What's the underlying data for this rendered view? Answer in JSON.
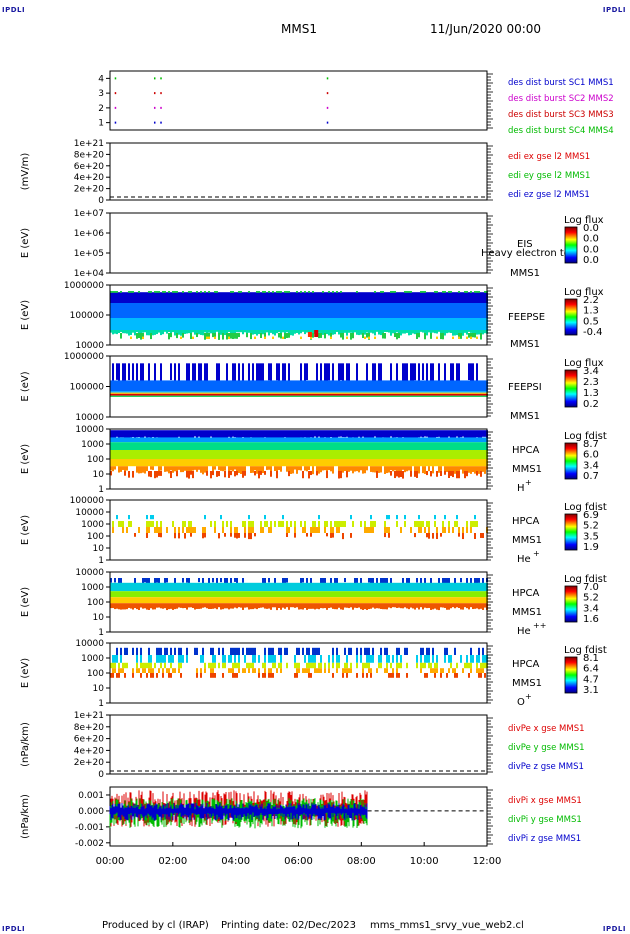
{
  "corners": {
    "tl": "IPDLI",
    "tr": "IPDLI",
    "bl": "IPDLI",
    "br": "IPDLI"
  },
  "header": {
    "spacecraft": "MMS1",
    "date": "11/Jun/2020 00:00"
  },
  "footer": {
    "producer": "Produced by cl (IRAP)",
    "printing_date": "Printing date: 02/Dec/2023",
    "script": "mms_mms1_srvy_vue_web2.cl"
  },
  "colors": {
    "mms1": "#0000cc",
    "mms2": "#cc00cc",
    "mms3": "#cc0000",
    "mms4": "#00bb00",
    "x": "#dd0000",
    "y": "#00bb00",
    "z": "#0000cc"
  },
  "chart_data": [
    {
      "type": "scatter",
      "id": "burst",
      "yticks": [
        "1",
        "2",
        "3",
        "4"
      ],
      "ylim": [
        0.5,
        4.5
      ],
      "xlim": [
        0,
        12
      ],
      "series": [
        {
          "name": "des dist burst SC1 MMS1",
          "color": "#0000cc",
          "y": 1,
          "x": [
            0.15,
            1.4,
            1.6,
            6.9
          ]
        },
        {
          "name": "des dist burst SC2 MMS2",
          "color": "#cc00cc",
          "y": 2,
          "x": [
            0.15,
            1.4,
            1.6,
            6.9
          ]
        },
        {
          "name": "des dist burst SC3 MMS3",
          "color": "#cc0000",
          "y": 3,
          "x": [
            0.15,
            1.4,
            1.6,
            6.9
          ]
        },
        {
          "name": "des dist burst SC4 MMS4",
          "color": "#00bb00",
          "y": 4,
          "x": [
            0.15,
            1.4,
            1.6,
            6.9
          ]
        }
      ]
    },
    {
      "type": "line",
      "id": "edi",
      "ylabel": "(mV/m)",
      "yticks": [
        "1e+21",
        "8e+20",
        "6e+20",
        "4e+20",
        "2e+20",
        "0"
      ],
      "series": [
        {
          "name": "edi ex gse l2 MMS1",
          "color": "#dd0000"
        },
        {
          "name": "edi ey gse l2 MMS1",
          "color": "#00bb00"
        },
        {
          "name": "edi ez gse l2 MMS1",
          "color": "#0000cc"
        }
      ]
    },
    {
      "type": "heatmap",
      "id": "eis",
      "ylabel": "E (eV)",
      "yticks": [
        "1e+07",
        "1e+06",
        "1e+05",
        "1e+04"
      ],
      "instrument": "EIS",
      "overlay_text": "Heavy electron to",
      "spacecraft": "MMS1",
      "colorbar": {
        "title": "Log flux",
        "ticks": [
          "0.0",
          "0.0",
          "0.0",
          "0.0"
        ]
      }
    },
    {
      "type": "heatmap",
      "id": "feepse",
      "ylabel": "E (eV)",
      "yticks": [
        "1000000",
        "100000",
        "10000"
      ],
      "instrument": "FEEPSE",
      "spacecraft": "MMS1",
      "colorbar": {
        "title": "Log flux",
        "ticks": [
          "2.2",
          "1.3",
          "0.5",
          "-0.4"
        ]
      }
    },
    {
      "type": "heatmap",
      "id": "feepsi",
      "ylabel": "E (eV)",
      "yticks": [
        "1000000",
        "100000",
        "10000"
      ],
      "instrument": "FEEPSI",
      "spacecraft": "MMS1",
      "colorbar": {
        "title": "Log flux",
        "ticks": [
          "3.4",
          "2.3",
          "1.3",
          "0.2"
        ]
      }
    },
    {
      "type": "heatmap",
      "id": "hpca_h",
      "ylabel": "E (eV)",
      "yticks": [
        "10000",
        "1000",
        "100",
        "10",
        "1"
      ],
      "instrument": "HPCA",
      "spacecraft": "MMS1",
      "species": "H",
      "charge": "+",
      "colorbar": {
        "title": "Log fdist",
        "ticks": [
          "8.7",
          "6.0",
          "3.4",
          "0.7"
        ]
      }
    },
    {
      "type": "heatmap",
      "id": "hpca_he",
      "ylabel": "E (eV)",
      "yticks": [
        "100000",
        "10000",
        "1000",
        "100",
        "10",
        "1"
      ],
      "instrument": "HPCA",
      "spacecraft": "MMS1",
      "species": "He",
      "charge": "+",
      "colorbar": {
        "title": "Log fdist",
        "ticks": [
          "6.9",
          "5.2",
          "3.5",
          "1.9"
        ]
      }
    },
    {
      "type": "heatmap",
      "id": "hpca_he2",
      "ylabel": "E (eV)",
      "yticks": [
        "10000",
        "1000",
        "100",
        "10",
        "1"
      ],
      "instrument": "HPCA",
      "spacecraft": "MMS1",
      "species": "He",
      "charge": "++",
      "colorbar": {
        "title": "Log fdist",
        "ticks": [
          "7.0",
          "5.2",
          "3.4",
          "1.6"
        ]
      }
    },
    {
      "type": "heatmap",
      "id": "hpca_o",
      "ylabel": "E (eV)",
      "yticks": [
        "10000",
        "1000",
        "100",
        "10",
        "1"
      ],
      "instrument": "HPCA",
      "spacecraft": "MMS1",
      "species": "O",
      "charge": "+",
      "colorbar": {
        "title": "Log fdist",
        "ticks": [
          "8.1",
          "6.4",
          "4.7",
          "3.1"
        ]
      }
    },
    {
      "type": "line",
      "id": "divpe",
      "ylabel": "(nPa/km)",
      "yticks": [
        "1e+21",
        "8e+20",
        "6e+20",
        "4e+20",
        "2e+20",
        "0"
      ],
      "series": [
        {
          "name": "divPe x gse MMS1",
          "color": "#dd0000"
        },
        {
          "name": "divPe y gse MMS1",
          "color": "#00bb00"
        },
        {
          "name": "divPe z gse MMS1",
          "color": "#0000cc"
        }
      ]
    },
    {
      "type": "line",
      "id": "divpi",
      "ylabel": "(nPa/km)",
      "yticks": [
        "0.001",
        "0.000",
        "-0.001",
        "-0.002"
      ],
      "ylim": [
        -0.0022,
        0.0015
      ],
      "data_end_hours": 8.2,
      "series": [
        {
          "name": "divPi x gse MMS1",
          "color": "#dd0000"
        },
        {
          "name": "divPi y gse MMS1",
          "color": "#00bb00"
        },
        {
          "name": "divPi z gse MMS1",
          "color": "#0000cc"
        }
      ]
    }
  ],
  "xaxis": {
    "ticks": [
      "00:00",
      "02:00",
      "04:00",
      "06:00",
      "08:00",
      "10:00",
      "12:00"
    ],
    "xlim_hours": [
      0,
      12
    ]
  }
}
